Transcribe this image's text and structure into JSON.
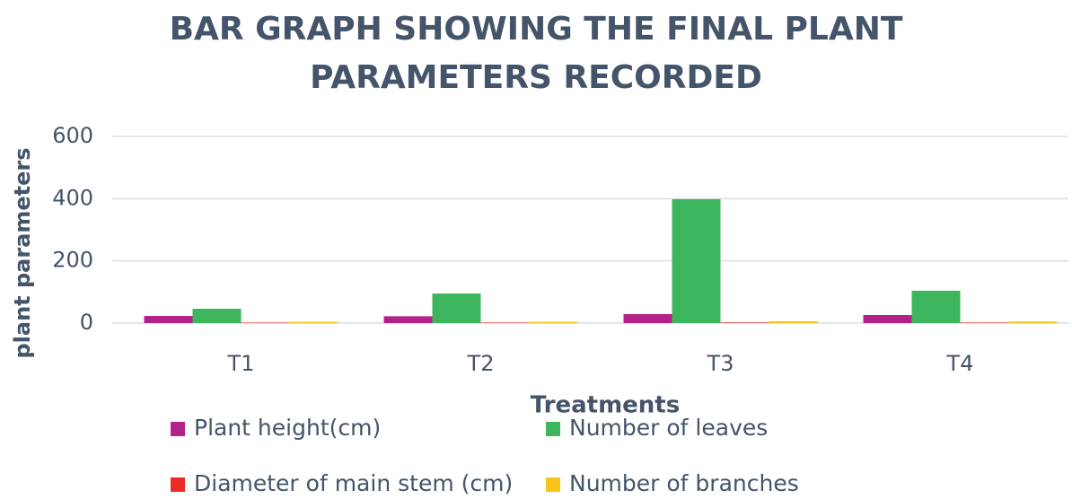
{
  "chart_data": {
    "type": "bar",
    "title": "BAR GRAPH SHOWING THE FINAL PLANT PARAMETERS RECORDED",
    "x_label": "Treatments",
    "y_label": "plant parameters",
    "categories": [
      "T1",
      "T2",
      "T3",
      "T4"
    ],
    "series": [
      {
        "name": "Plant height(cm)",
        "color": "#b5218a",
        "values": [
          23,
          22,
          29,
          26
        ]
      },
      {
        "name": "Number of leaves",
        "color": "#3cb55c",
        "values": [
          46,
          95,
          398,
          104
        ]
      },
      {
        "name": "Diameter of main stem (cm)",
        "color": "#ee2a24",
        "values": [
          1.5,
          1.6,
          2,
          1.8
        ]
      },
      {
        "name": "Number of branches",
        "color": "#f7c41a",
        "values": [
          4,
          4,
          6,
          5
        ]
      }
    ],
    "ylim": [
      0,
      600
    ],
    "yticks": [
      0,
      200,
      400,
      600
    ],
    "grid": true,
    "legend": "bottom"
  }
}
